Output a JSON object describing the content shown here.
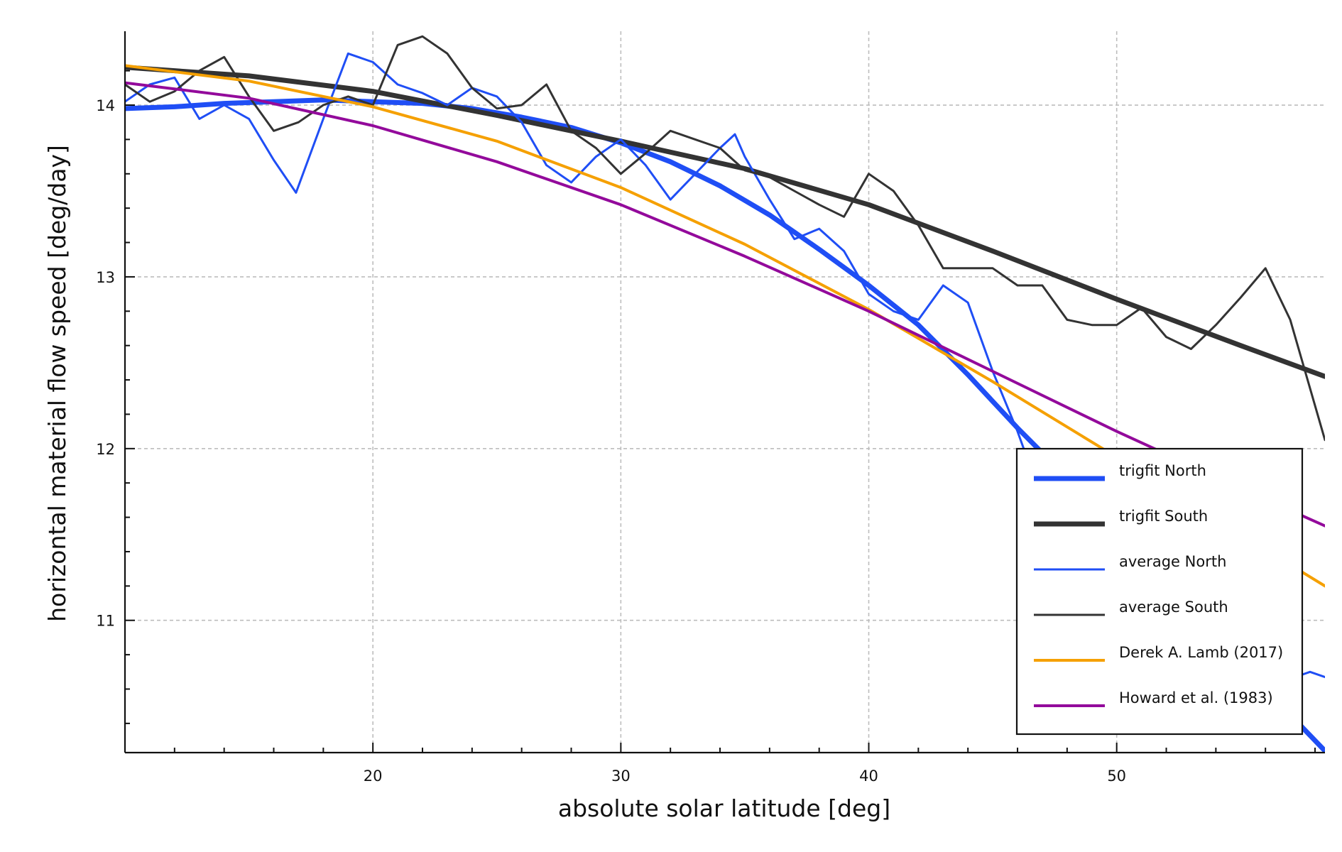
{
  "chart_data": {
    "type": "line",
    "title": "",
    "xlabel": "absolute solar latitude [deg]",
    "ylabel": "horizontal material flow speed [deg/day]",
    "xlim": [
      10,
      58.4
    ],
    "ylim": [
      10.23,
      14.43
    ],
    "xticks": [
      20,
      30,
      40,
      50
    ],
    "yticks": [
      11,
      12,
      13,
      14
    ],
    "grid": true,
    "legend_position": "lower-right",
    "series": [
      {
        "name": "trigfit North",
        "color": "#1f4ef5",
        "width": "thick",
        "x": [
          10,
          12,
          14,
          16,
          18,
          20,
          22,
          24,
          26,
          28,
          30,
          32,
          34,
          36,
          38,
          40,
          42,
          44,
          46,
          48,
          50,
          52,
          54,
          56,
          58.4
        ],
        "y": [
          13.98,
          13.99,
          14.01,
          14.02,
          14.03,
          14.02,
          14.01,
          13.98,
          13.93,
          13.87,
          13.78,
          13.67,
          13.53,
          13.36,
          13.16,
          12.95,
          12.72,
          12.43,
          12.12,
          11.83,
          11.55,
          11.22,
          10.93,
          10.6,
          10.24
        ]
      },
      {
        "name": "trigfit South",
        "color": "#333333",
        "width": "thick",
        "x": [
          10,
          15,
          20,
          25,
          30,
          35,
          40,
          45,
          50,
          55,
          58.4
        ],
        "y": [
          14.22,
          14.17,
          14.08,
          13.94,
          13.79,
          13.63,
          13.42,
          13.15,
          12.87,
          12.6,
          12.42
        ]
      },
      {
        "name": "average North",
        "color": "#1f4ef5",
        "width": "thin",
        "x": [
          10,
          11,
          12,
          13,
          14,
          15,
          16,
          16.9,
          18,
          19,
          20,
          21,
          22,
          23,
          24,
          25,
          26,
          27,
          28,
          29,
          30,
          31,
          32,
          33,
          34,
          34.6,
          35,
          36,
          37,
          38,
          39,
          40,
          41,
          42,
          43,
          44,
          45,
          46,
          47,
          48,
          49,
          50,
          51,
          52,
          53,
          54,
          55,
          56,
          57,
          57.8,
          58.4
        ],
        "y": [
          14.02,
          14.12,
          14.16,
          13.92,
          14.0,
          13.92,
          13.68,
          13.49,
          13.92,
          14.3,
          14.25,
          14.12,
          14.07,
          14.0,
          14.1,
          14.05,
          13.9,
          13.65,
          13.55,
          13.7,
          13.8,
          13.65,
          13.45,
          13.6,
          13.75,
          13.83,
          13.7,
          13.45,
          13.22,
          13.28,
          13.15,
          12.9,
          12.8,
          12.75,
          12.95,
          12.85,
          12.45,
          12.1,
          11.7,
          11.45,
          11.2,
          10.95,
          10.7,
          10.68,
          10.62,
          10.6,
          10.58,
          10.62,
          10.66,
          10.7,
          10.67
        ]
      },
      {
        "name": "average South",
        "color": "#333333",
        "width": "thin",
        "x": [
          10,
          11,
          12,
          13,
          14,
          15,
          16,
          17,
          18,
          19,
          20,
          21,
          22,
          23,
          24,
          25,
          26,
          27,
          28,
          29,
          30,
          31,
          32,
          33,
          34,
          35,
          36,
          37,
          38,
          39,
          40,
          41,
          42,
          43,
          44,
          45,
          46,
          47,
          48,
          49,
          50,
          51,
          52,
          53,
          54,
          55,
          56,
          57,
          58.4
        ],
        "y": [
          14.12,
          14.02,
          14.08,
          14.2,
          14.28,
          14.05,
          13.85,
          13.9,
          14.0,
          14.05,
          14.0,
          14.35,
          14.4,
          14.3,
          14.1,
          13.98,
          14.0,
          14.12,
          13.85,
          13.75,
          13.6,
          13.72,
          13.85,
          13.8,
          13.75,
          13.62,
          13.58,
          13.5,
          13.42,
          13.35,
          13.6,
          13.5,
          13.3,
          13.05,
          13.05,
          13.05,
          12.95,
          12.95,
          12.75,
          12.72,
          12.72,
          12.82,
          12.65,
          12.58,
          12.72,
          12.88,
          13.05,
          12.75,
          12.05
        ]
      },
      {
        "name": "Derek A. Lamb (2017)",
        "color": "#f5a000",
        "width": "medium",
        "x": [
          10,
          15,
          20,
          25,
          30,
          35,
          40,
          45,
          50,
          55,
          58.4
        ],
        "y": [
          14.23,
          14.14,
          13.99,
          13.79,
          13.52,
          13.19,
          12.81,
          12.39,
          11.95,
          11.5,
          11.2
        ]
      },
      {
        "name": "Howard et al. (1983)",
        "color": "#930a9b",
        "width": "medium",
        "x": [
          10,
          15,
          20,
          25,
          30,
          35,
          40,
          45,
          50,
          55,
          58.4
        ],
        "y": [
          14.13,
          14.04,
          13.88,
          13.67,
          13.42,
          13.12,
          12.8,
          12.45,
          12.1,
          11.77,
          11.55
        ]
      }
    ]
  }
}
